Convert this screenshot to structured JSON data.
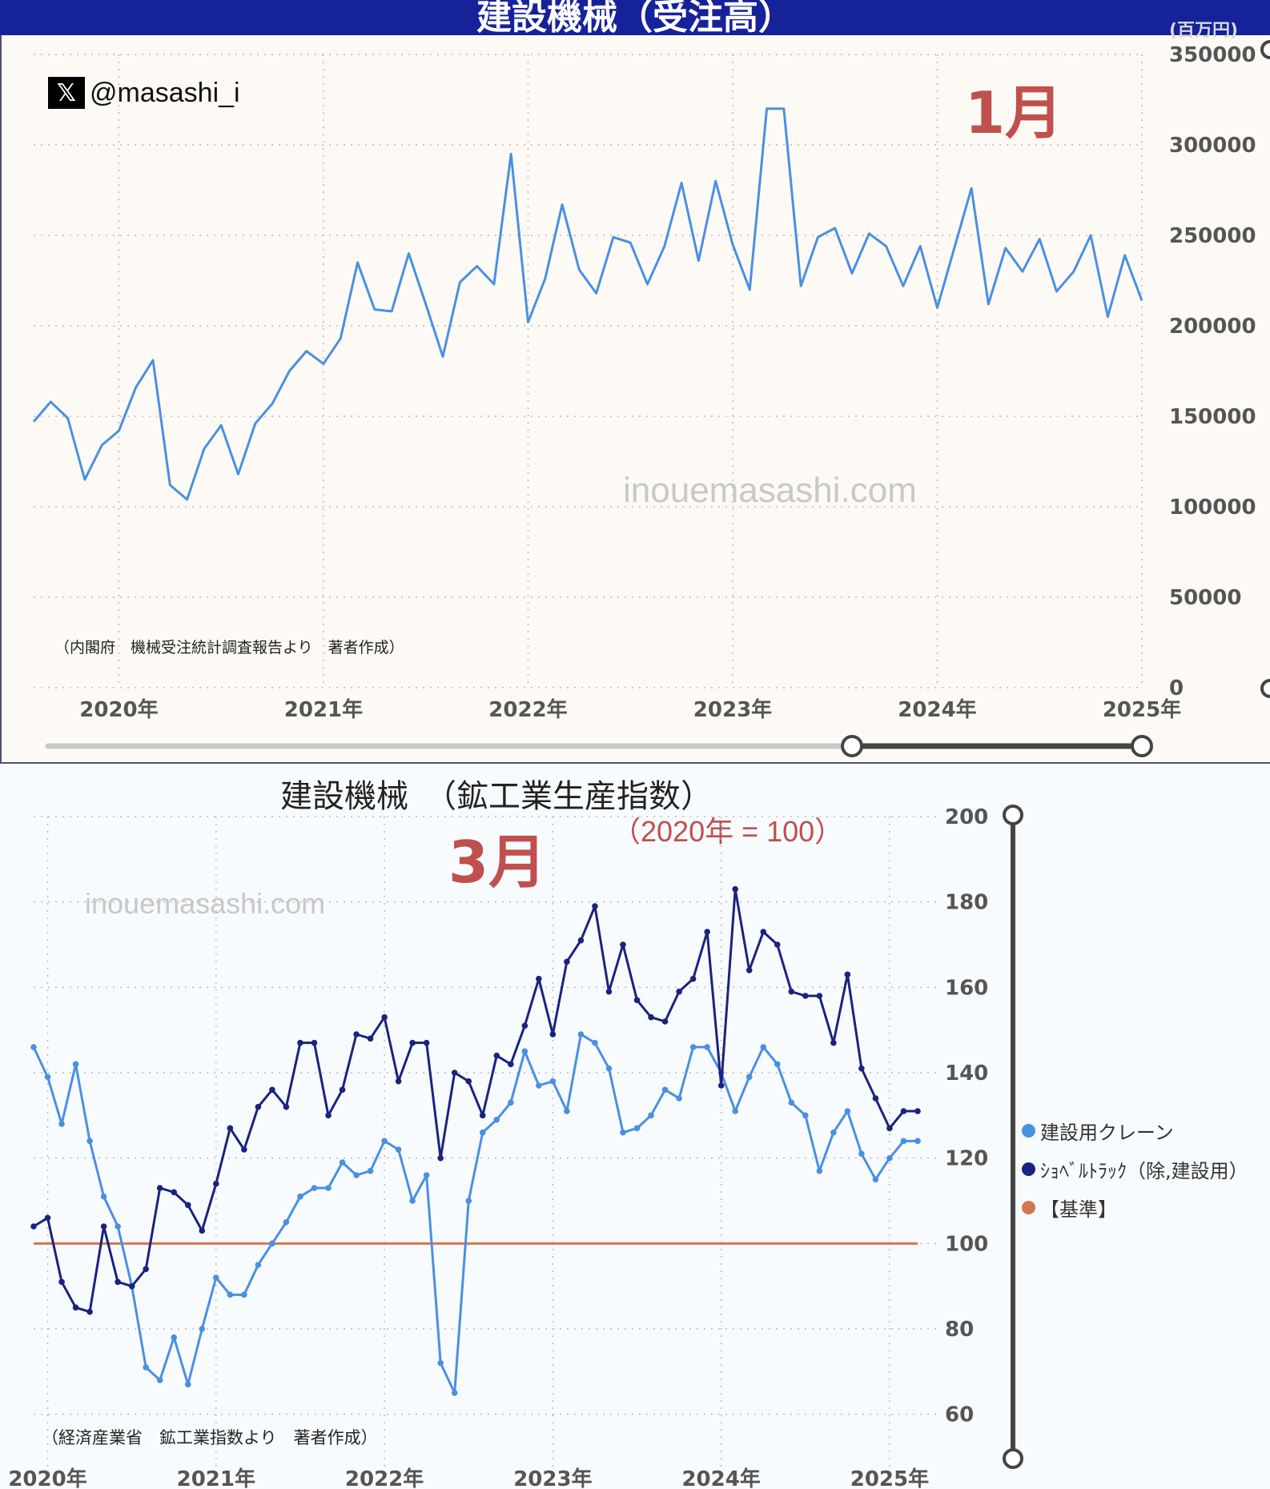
{
  "top_panel": {
    "title": "建設機械（受注高）",
    "unit_label": "(百万円)",
    "social_logo": "𝕏",
    "social_handle": "@masashi_i",
    "month_label": "1月",
    "watermark": "inouemasashi.com",
    "source_note": "（内閣府　機械受注統計調査報告より　著者作成）",
    "line_color": "#4a90e2"
  },
  "bottom_panel": {
    "title": "建設機械　（鉱工業生産指数）",
    "subtitle": "（2020年 = 100）",
    "month_label": "3月",
    "watermark": "inouemasashi.com",
    "source_note": "（経済産業省　鉱工業指数より　著者作成）"
  },
  "chart_data": [
    {
      "type": "line",
      "title": "建設機械（受注高）",
      "ylabel": "(百万円)",
      "ylim": [
        0,
        350000
      ],
      "yticks": [
        0,
        50000,
        100000,
        150000,
        200000,
        250000,
        300000,
        350000
      ],
      "ytick_labels": [
        "0",
        "50000",
        "100000",
        "150000",
        "200000",
        "250000",
        "300000",
        "350000"
      ],
      "xtick_labels": [
        "2020年",
        "2021年",
        "2022年",
        "2023年",
        "2024年",
        "2025年"
      ],
      "x_start": "2019-08",
      "x_end": "2025-01",
      "grid": true,
      "series": [
        {
          "values": [
            147000,
            158000,
            149000,
            115000,
            134000,
            142000,
            166000,
            181000,
            112000,
            104000,
            132000,
            145000,
            118000,
            146000,
            157000,
            175000,
            186000,
            179000,
            193000,
            235000,
            209000,
            208000,
            240000,
            212000,
            183000,
            224000,
            233000,
            223000,
            295000,
            202000,
            226000,
            267000,
            231000,
            218000,
            249000,
            246000,
            223000,
            244000,
            279000,
            236000,
            280000,
            245000,
            220000,
            320000,
            320000,
            222000,
            249000,
            254000,
            229000,
            251000,
            244000,
            222000,
            244000,
            210000,
            243000,
            276000,
            212000,
            243000,
            230000,
            248000,
            219000,
            230000,
            250000,
            205000,
            239000,
            214000
          ],
          "color": "#4a90e2"
        }
      ],
      "range_slider": {
        "from": "2023-08",
        "to": "2025-01"
      }
    },
    {
      "type": "line",
      "title": "建設機械　（鉱工業生産指数）",
      "subtitle": "（2020年 = 100）",
      "ylim": [
        50,
        200
      ],
      "yticks": [
        60,
        80,
        100,
        120,
        140,
        160,
        180,
        200
      ],
      "ytick_labels": [
        "60",
        "80",
        "100",
        "120",
        "140",
        "160",
        "180",
        "200"
      ],
      "xtick_labels": [
        "2020年",
        "2021年",
        "2022年",
        "2023年",
        "2024年",
        "2025年"
      ],
      "x_start": "2019-12",
      "x_end": "2025-03",
      "grid": true,
      "legend_position": "right",
      "series": [
        {
          "name": "建設用クレーン",
          "color": "#4a90e2",
          "markers": true,
          "values": [
            146,
            139,
            128,
            142,
            124,
            111,
            104,
            90,
            71,
            68,
            78,
            67,
            80,
            92,
            88,
            88,
            95,
            100,
            105,
            111,
            113,
            113,
            119,
            116,
            117,
            124,
            122,
            110,
            116,
            72,
            65,
            110,
            126,
            129,
            133,
            145,
            137,
            138,
            131,
            149,
            147,
            141,
            126,
            127,
            130,
            136,
            134,
            146,
            146,
            140,
            131,
            139,
            146,
            142,
            133,
            130,
            117,
            126,
            131,
            121,
            115,
            120,
            124,
            124
          ]
        },
        {
          "name": "ｼｮﾍﾞﾙﾄﾗｯｸ（除,建設用）",
          "color": "#1a237e",
          "markers": true,
          "values": [
            104,
            106,
            91,
            85,
            84,
            104,
            91,
            90,
            94,
            113,
            112,
            109,
            103,
            114,
            127,
            122,
            132,
            136,
            132,
            147,
            147,
            130,
            136,
            149,
            148,
            153,
            138,
            147,
            147,
            120,
            140,
            138,
            130,
            144,
            142,
            151,
            162,
            149,
            166,
            171,
            179,
            159,
            170,
            157,
            153,
            152,
            159,
            162,
            173,
            137,
            183,
            164,
            173,
            170,
            159,
            158,
            158,
            147,
            163,
            141,
            134,
            127,
            131,
            131
          ]
        },
        {
          "name": "【基準】",
          "color": "#d2774e",
          "markers": false,
          "values": [
            100,
            100
          ]
        }
      ]
    }
  ]
}
